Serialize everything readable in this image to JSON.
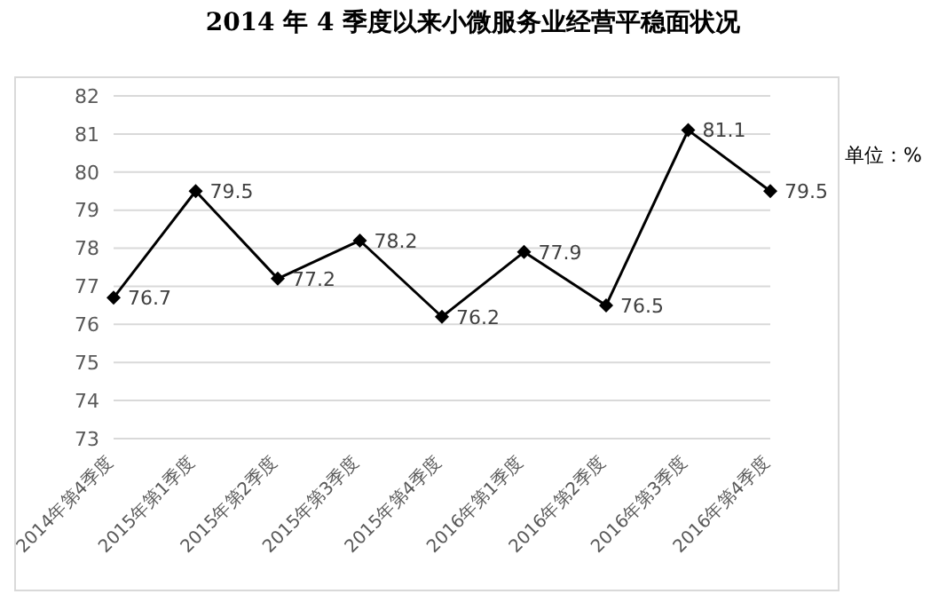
{
  "chart_data": {
    "type": "line",
    "title": "2014 年 4 季度以来小微服务业经营平稳面状况",
    "annotations": [
      "单位：%"
    ],
    "categories": [
      "2014年第4季度",
      "2015年第1季度",
      "2015年第2季度",
      "2015年第3季度",
      "2015年第4季度",
      "2016年第1季度",
      "2016年第2季度",
      "2016年第3季度",
      "2016年第4季度"
    ],
    "series": [
      {
        "color": "#000000",
        "values": [
          76.7,
          79.5,
          77.2,
          78.2,
          76.2,
          77.9,
          76.5,
          81.1,
          79.5
        ]
      }
    ],
    "ylim": [
      73,
      82
    ],
    "yticks": [
      73,
      74,
      75,
      76,
      77,
      78,
      79,
      80,
      81,
      82
    ],
    "grid": "y",
    "data_labels": true,
    "marker": "diamond",
    "line_style": "solid",
    "legend": false
  }
}
